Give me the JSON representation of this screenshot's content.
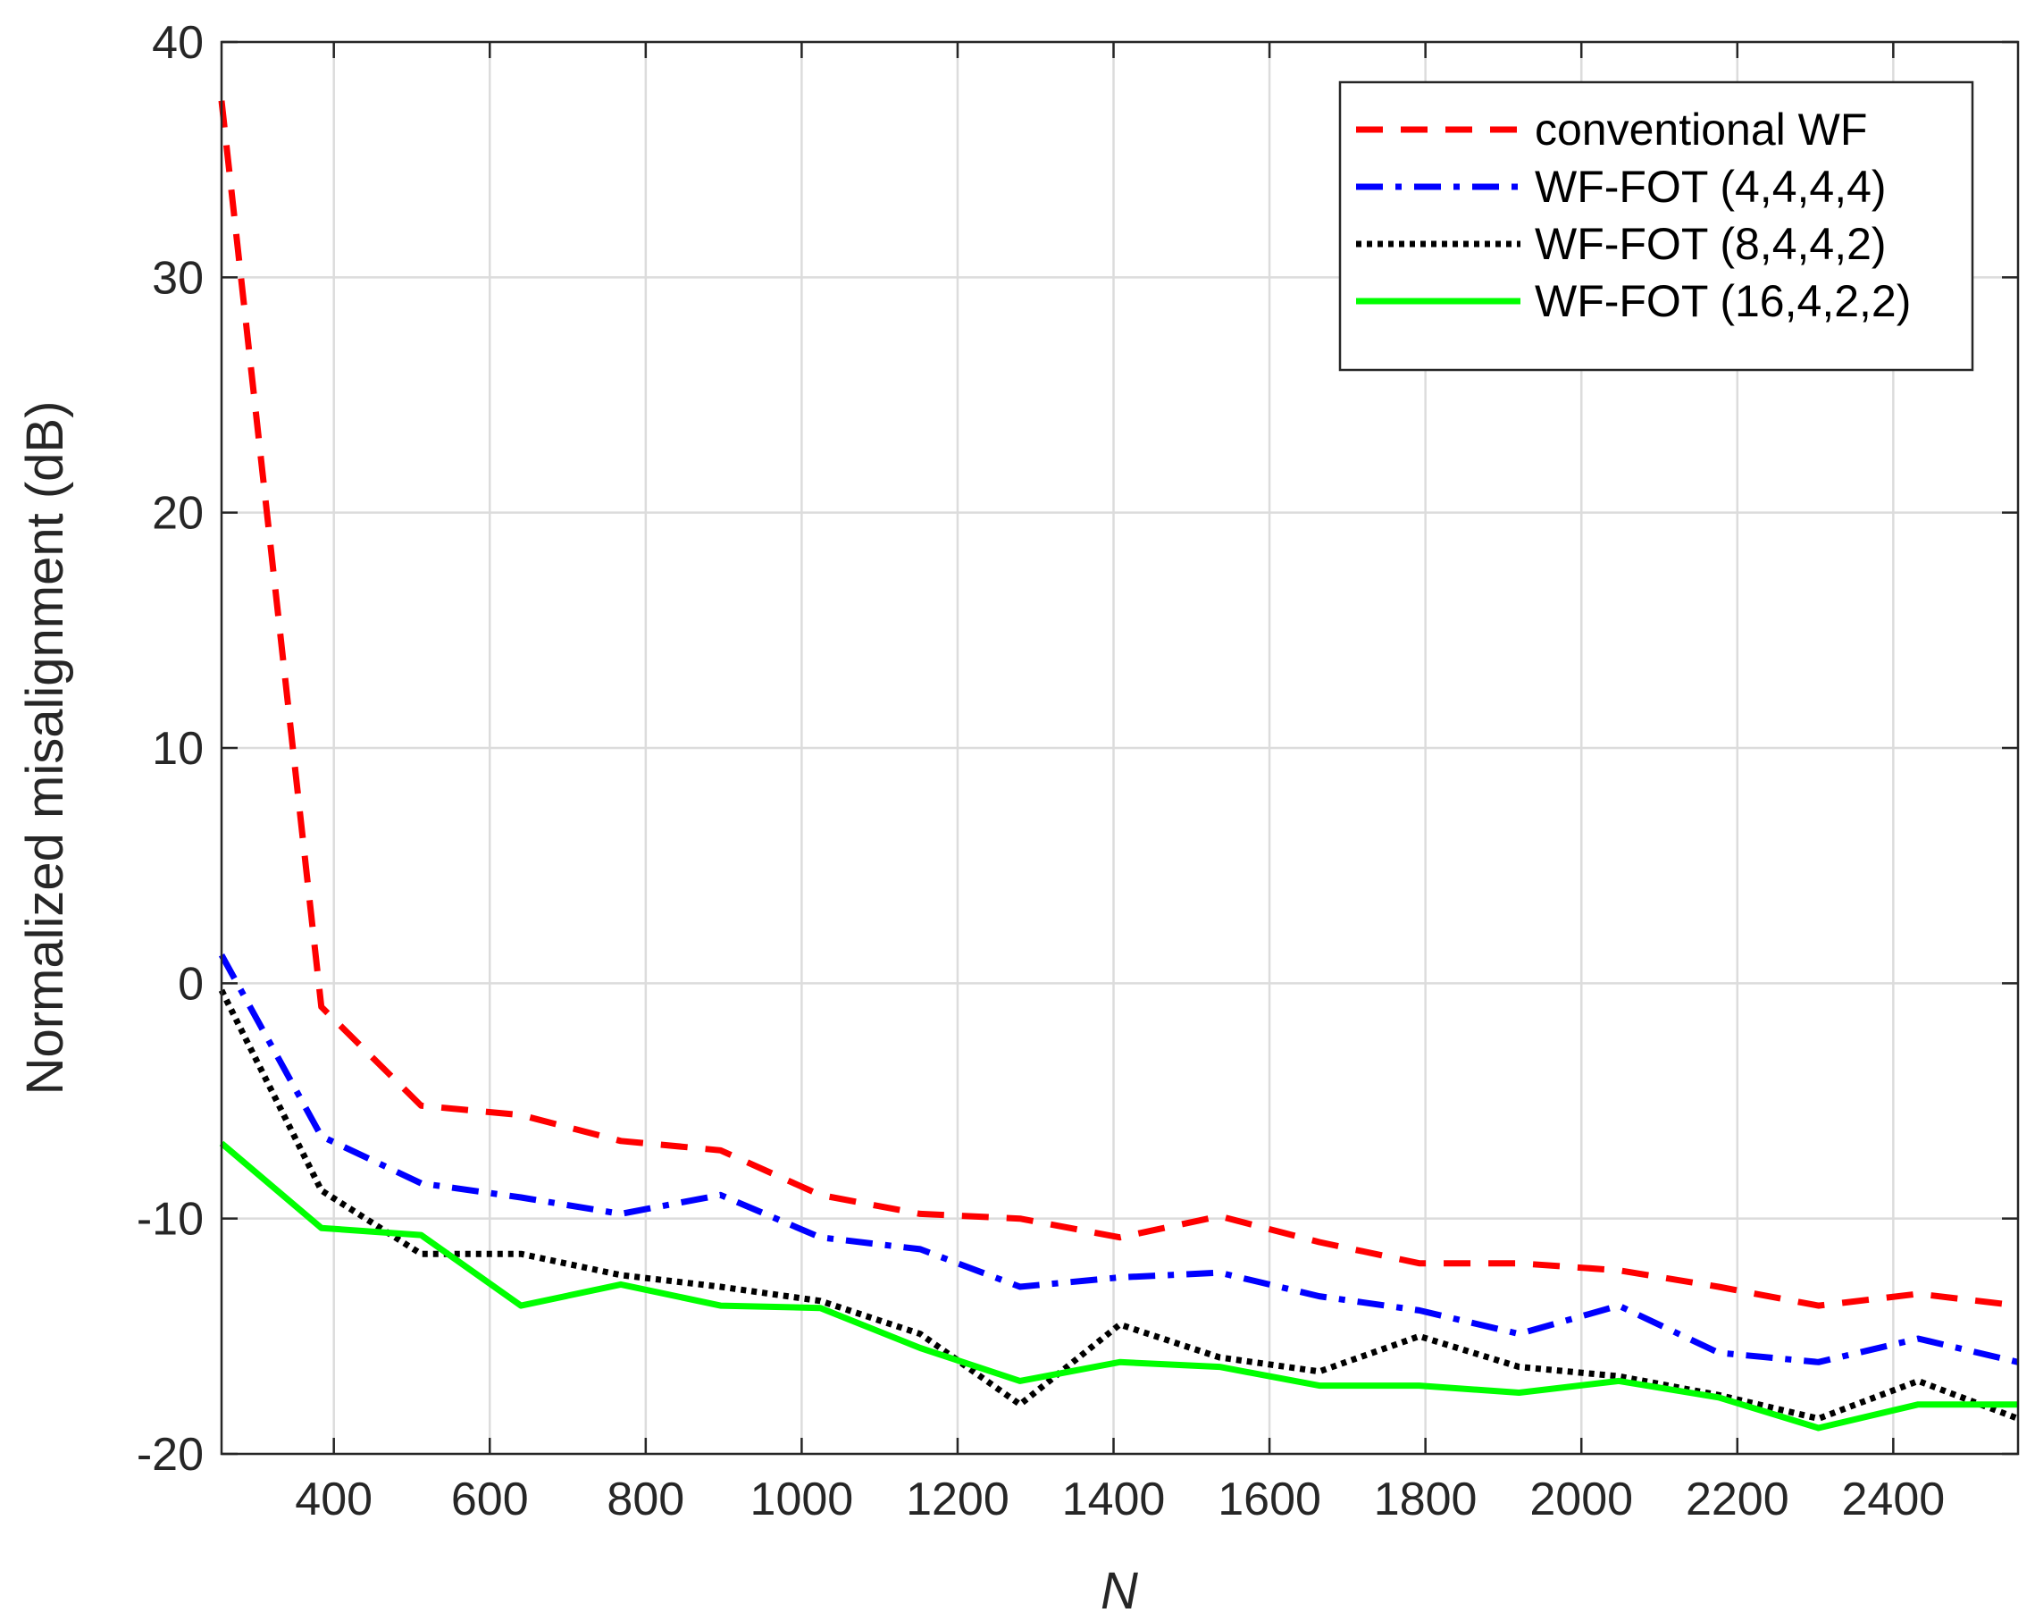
{
  "chart_data": {
    "type": "line",
    "title": "",
    "xlabel": "N",
    "ylabel": "Normalized misalignment (dB)",
    "xlim": [
      256,
      2560
    ],
    "ylim": [
      -20,
      40
    ],
    "grid": true,
    "legend_position": "top-right",
    "xticks": [
      400,
      600,
      800,
      1000,
      1200,
      1400,
      1600,
      1800,
      2000,
      2200,
      2400
    ],
    "yticks": [
      -20,
      -10,
      0,
      10,
      20,
      30,
      40
    ],
    "x": [
      256,
      384,
      512,
      640,
      768,
      896,
      1024,
      1152,
      1280,
      1408,
      1536,
      1664,
      1792,
      1920,
      2048,
      2176,
      2304,
      2432,
      2560
    ],
    "series": [
      {
        "name": "conventional WF",
        "color": "#ff0000",
        "style": "dashed",
        "values": [
          37.5,
          -1.0,
          -5.2,
          -5.6,
          -6.7,
          -7.1,
          -9.0,
          -9.8,
          -10.0,
          -10.8,
          -9.9,
          -11.0,
          -11.9,
          -11.9,
          -12.2,
          -12.9,
          -13.7,
          -13.2,
          -13.7
        ]
      },
      {
        "name": "WF-FOT (4,4,4,4)",
        "color": "#0000ff",
        "style": "dashdot",
        "values": [
          1.2,
          -6.5,
          -8.5,
          -9.1,
          -9.8,
          -9.0,
          -10.8,
          -11.3,
          -12.9,
          -12.5,
          -12.3,
          -13.3,
          -13.9,
          -14.9,
          -13.7,
          -15.7,
          -16.1,
          -15.1,
          -16.1
        ]
      },
      {
        "name": "WF-FOT (8,4,4,2)",
        "color": "#000000",
        "style": "dotted",
        "values": [
          -0.3,
          -8.8,
          -11.5,
          -11.5,
          -12.4,
          -12.9,
          -13.5,
          -14.9,
          -17.9,
          -14.5,
          -15.9,
          -16.5,
          -15.0,
          -16.3,
          -16.7,
          -17.5,
          -18.5,
          -16.9,
          -18.5
        ]
      },
      {
        "name": "WF-FOT (16,4,2,2)",
        "color": "#00ff00",
        "style": "solid",
        "values": [
          -6.8,
          -10.4,
          -10.7,
          -13.7,
          -12.8,
          -13.7,
          -13.8,
          -15.5,
          -16.9,
          -16.1,
          -16.3,
          -17.1,
          -17.1,
          -17.4,
          -16.9,
          -17.6,
          -18.9,
          -17.9,
          -17.9
        ]
      }
    ]
  }
}
